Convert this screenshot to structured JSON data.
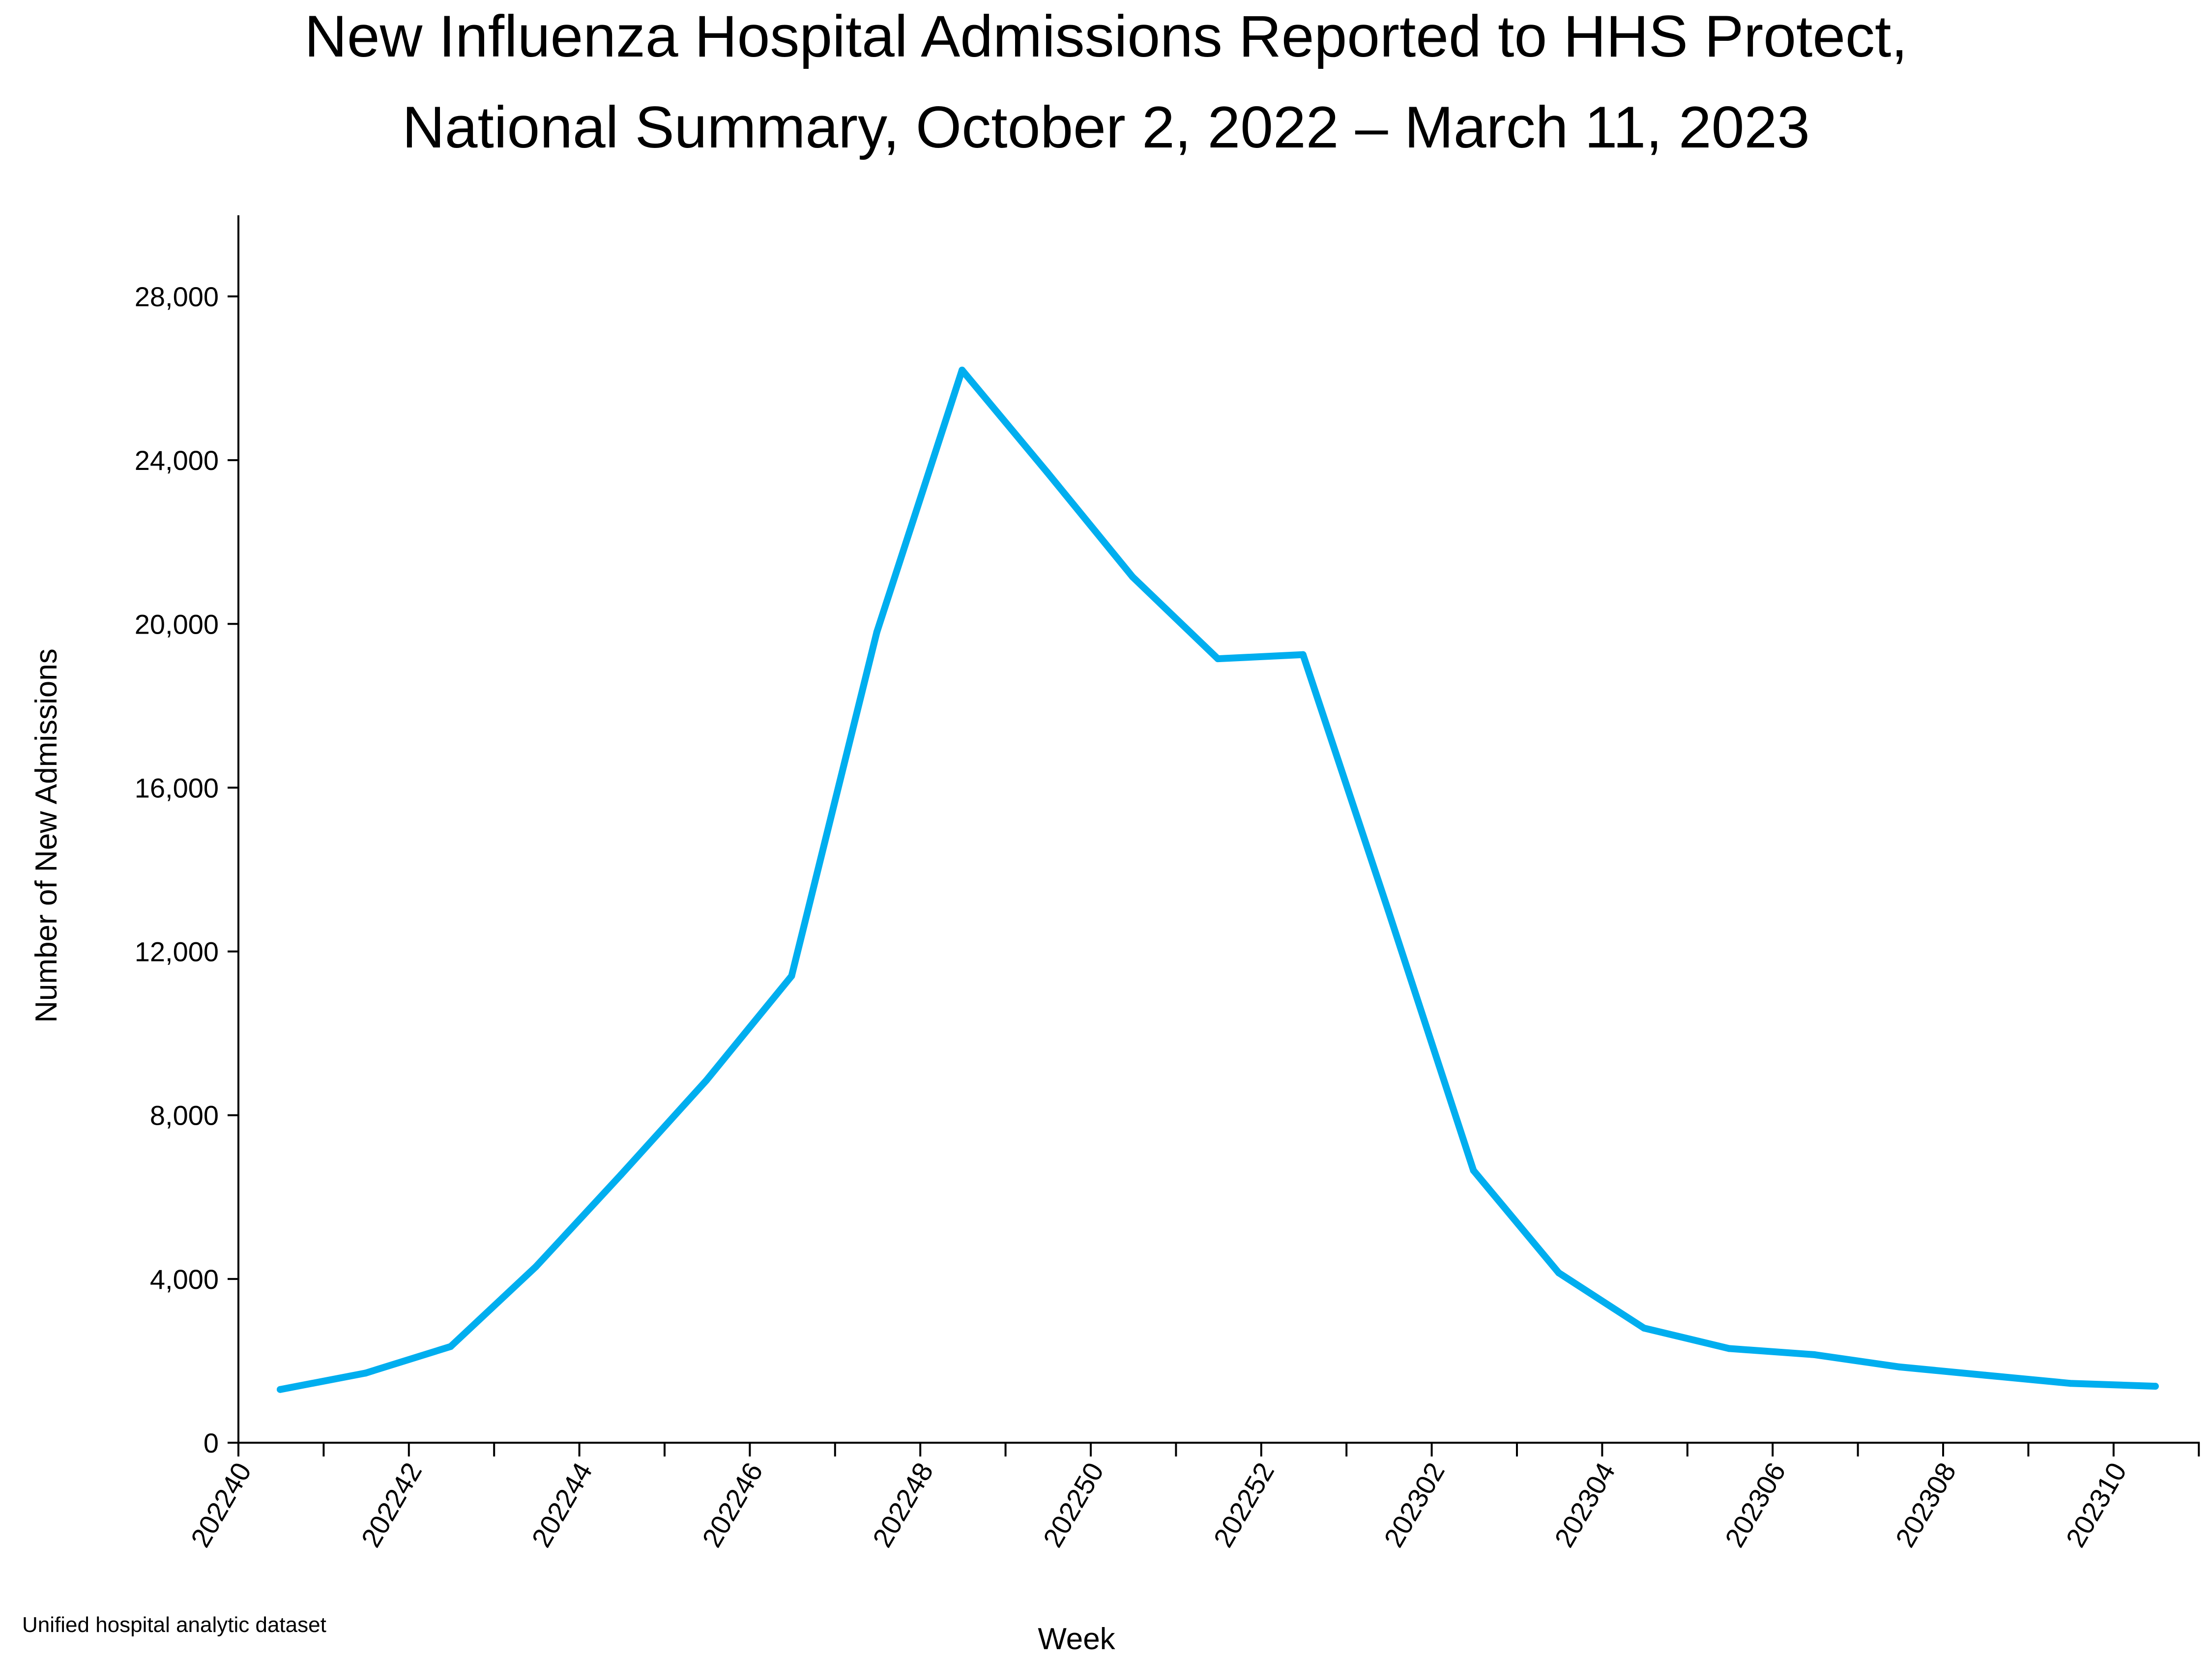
{
  "chart_data": {
    "type": "line",
    "title_lines": [
      "New Influenza Hospital Admissions Reported to HHS Protect,",
      "National Summary, October 2, 2022 – March 11, 2023"
    ],
    "xlabel": "Week",
    "ylabel": "Number of New Admissions",
    "source": "Unified hospital analytic dataset",
    "ylim": [
      0,
      30000
    ],
    "y_ticks": [
      0,
      4000,
      8000,
      12000,
      16000,
      20000,
      24000,
      28000
    ],
    "y_tick_labels": [
      "0",
      "4,000",
      "8,000",
      "12,000",
      "16,000",
      "20,000",
      "24,000",
      "28,000"
    ],
    "x_tick_labels": [
      "202240",
      "202242",
      "202244",
      "202246",
      "202248",
      "202250",
      "202252",
      "202302",
      "202304",
      "202306",
      "202308",
      "202310"
    ],
    "grid": false,
    "legend": "none",
    "line_color": "#00AEEF",
    "x": [
      "202240",
      "202241",
      "202242",
      "202243",
      "202244",
      "202245",
      "202246",
      "202247",
      "202248",
      "202249",
      "202250",
      "202251",
      "202252",
      "202301",
      "202302",
      "202303",
      "202304",
      "202305",
      "202306",
      "202307",
      "202308",
      "202309",
      "202310"
    ],
    "series": [
      {
        "values": [
          1300,
          1700,
          2350,
          4300,
          6550,
          8850,
          11400,
          19800,
          26200,
          23700,
          21150,
          19150,
          19250,
          13000,
          6650,
          4150,
          2800,
          2300,
          2150,
          1850,
          1650,
          1450,
          1380
        ]
      }
    ]
  }
}
